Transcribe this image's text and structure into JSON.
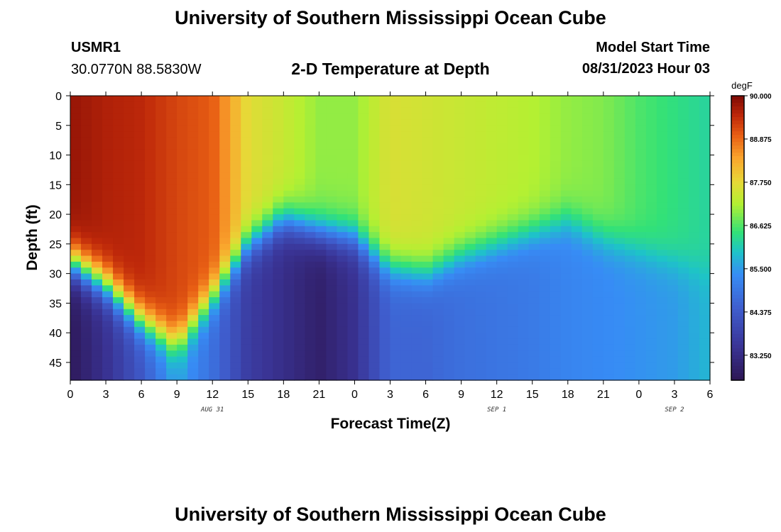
{
  "page": {
    "title": "University of Southern Mississippi Ocean Cube",
    "footer_title": "University of Southern Mississippi Ocean Cube",
    "station_id": "USMR1",
    "station_coords": "30.0770N  88.5830W",
    "subtitle": "2-D Temperature at Depth",
    "model_start_label": "Model Start Time",
    "model_start_value": "08/31/2023 Hour 03"
  },
  "chart_data": {
    "type": "heatmap",
    "title": "2-D Temperature at Depth",
    "xlabel": "Forecast Time(Z)",
    "ylabel": "Depth (ft)",
    "x_ticks": [
      "0",
      "3",
      "6",
      "9",
      "12",
      "15",
      "18",
      "21",
      "0",
      "3",
      "6",
      "9",
      "12",
      "15",
      "18",
      "21",
      "0",
      "3",
      "6"
    ],
    "x_range_hours": [
      0,
      54
    ],
    "date_labels": [
      {
        "label": "AUG 31",
        "hour": 12
      },
      {
        "label": "SEP 1",
        "hour": 36
      },
      {
        "label": "SEP 2",
        "hour": 51
      }
    ],
    "y_ticks": [
      0,
      5,
      10,
      15,
      20,
      25,
      30,
      35,
      40,
      45
    ],
    "y_range": [
      0,
      48
    ],
    "colorbar": {
      "unit": "degF",
      "min": 82.6,
      "max": 90.0,
      "ticks": [
        "90.000",
        "88.875",
        "87.750",
        "86.625",
        "85.500",
        "84.375",
        "83.250"
      ],
      "tick_values": [
        90.0,
        88.875,
        87.75,
        86.625,
        85.5,
        84.375,
        83.25
      ]
    },
    "grid": false,
    "hours": [
      0,
      3,
      6,
      9,
      12,
      15,
      18,
      21,
      24,
      27,
      30,
      33,
      36,
      39,
      42,
      45,
      48,
      51,
      54
    ],
    "thermocline_depth_ft": [
      28,
      32,
      38,
      42,
      34,
      25,
      21,
      23,
      24,
      29,
      30,
      27,
      25,
      23,
      21,
      24,
      26,
      28,
      30
    ],
    "mixed_layer_temp_degF": [
      89.8,
      89.6,
      89.5,
      89.2,
      89.0,
      87.7,
      87.4,
      87.0,
      87.0,
      87.6,
      87.5,
      87.4,
      87.3,
      87.2,
      87.0,
      86.9,
      86.6,
      86.4,
      86.2
    ],
    "bottom_temp_degF": [
      82.7,
      83.4,
      84.3,
      85.6,
      84.8,
      83.7,
      83.3,
      82.9,
      83.4,
      84.6,
      84.6,
      84.8,
      84.9,
      85.0,
      85.2,
      85.3,
      85.4,
      85.5,
      85.8
    ]
  }
}
